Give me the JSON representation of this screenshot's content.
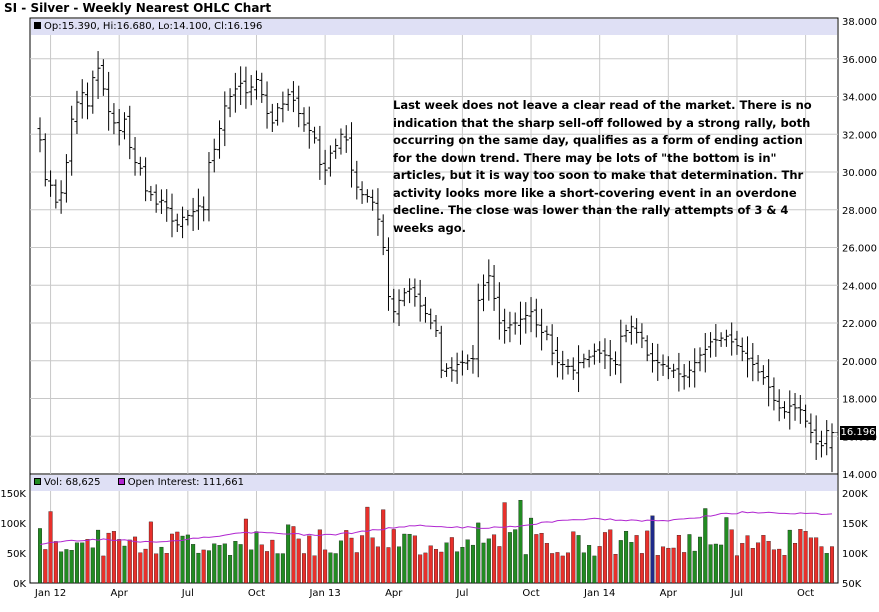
{
  "title": "SI - Silver - Weekly Nearest OHLC Chart",
  "ohlc_legend": "Op:15.390, Hi:16.680, Lo:14.100, Cl:16.196",
  "volume_legend": {
    "volume": "Vol: 68,625",
    "open_interest": "Open Interest: 111,661"
  },
  "annotation": "Last week does not leave a clear read of the market.  There is no indication that the sharp sell-off followed by a strong rally, both occurring on the same day, qualifies as a form of ending action for the down trend.   There may be lots of \"the bottom is in\" articles, but it is way too soon to make that determination.  Thr activity looks more like a short-covering event in an overdone decline.  The close was lower than the rally attempts of 3 & 4 weeks ago.",
  "last_price_label": "16.196",
  "colors": {
    "bar": "#000000",
    "vol_up": "#228b22",
    "vol_down": "#e8302b",
    "vol_other": "#1f2a8a",
    "open_interest": "#b026d0",
    "header": "#dfe0f5",
    "grid": "#c8c8c8"
  },
  "chart_data": [
    {
      "type": "ohlc",
      "title": "SI - Silver - Weekly Nearest OHLC Chart",
      "y_ticks": [
        14,
        16,
        18,
        20,
        22,
        24,
        26,
        28,
        30,
        32,
        34,
        36,
        38
      ],
      "y_tick_labels": [
        "14.000",
        "16.000",
        "18.000",
        "20.000",
        "22.000",
        "24.000",
        "26.000",
        "28.000",
        "30.000",
        "32.000",
        "34.000",
        "36.000",
        "38.000"
      ],
      "ylim": [
        14,
        38
      ],
      "x_tick_labels": [
        "Jan 12",
        "Apr",
        "Jul",
        "Oct",
        "Jan 13",
        "Apr",
        "Jul",
        "Oct",
        "Jan 14",
        "Apr",
        "Jul",
        "Oct"
      ],
      "x_tick_weeks": [
        2,
        15,
        28,
        41,
        54,
        67,
        80,
        93,
        106,
        119,
        132,
        145
      ],
      "grid": true,
      "last_bar": {
        "open": 15.39,
        "high": 16.68,
        "low": 14.1,
        "close": 16.196
      },
      "weekly_closes": [
        31.7,
        29.6,
        29.3,
        28.4,
        28.9,
        30.5,
        32.8,
        33.7,
        34.2,
        33.5,
        35.0,
        35.5,
        34.4,
        33.2,
        32.6,
        32.2,
        32.8,
        31.3,
        30.5,
        30.2,
        29.0,
        28.8,
        28.3,
        28.5,
        28.1,
        27.4,
        27.2,
        27.6,
        27.7,
        27.9,
        28.2,
        28.0,
        30.5,
        31.2,
        32.3,
        33.5,
        34.0,
        34.4,
        34.7,
        34.2,
        34.5,
        34.9,
        34.1,
        33.1,
        32.6,
        33.4,
        33.6,
        34.1,
        33.8,
        33.1,
        32.5,
        32.2,
        31.8,
        30.4,
        30.1,
        31.0,
        31.4,
        32.0,
        31.7,
        30.1,
        29.2,
        28.8,
        28.7,
        28.4,
        27.5,
        26.0,
        23.4,
        22.6,
        23.2,
        23.6,
        23.8,
        23.4,
        22.9,
        22.5,
        22.0,
        21.6,
        19.5,
        19.6,
        19.5,
        19.8,
        19.9,
        20.0,
        20.1,
        23.2,
        24.0,
        24.5,
        23.3,
        22.0,
        21.6,
        21.9,
        22.0,
        22.2,
        22.4,
        22.6,
        21.9,
        21.5,
        21.4,
        20.4,
        19.9,
        19.8,
        19.7,
        19.5,
        19.9,
        20.1,
        20.2,
        20.5,
        20.4,
        20.3,
        20.1,
        19.8,
        21.3,
        21.6,
        21.8,
        21.5,
        21.2,
        20.3,
        20.0,
        19.9,
        19.8,
        19.6,
        19.5,
        19.3,
        19.2,
        19.5,
        19.9,
        20.3,
        20.6,
        21.0,
        21.1,
        21.2,
        21.3,
        21.0,
        20.8,
        20.5,
        20.1,
        19.8,
        19.4,
        19.1,
        18.6,
        17.9,
        17.5,
        17.3,
        17.6,
        17.5,
        17.4,
        16.8,
        16.2,
        15.6,
        15.5,
        16.3,
        16.196
      ],
      "volume_ylim": [
        0,
        150000
      ],
      "volume_tick_labels": [
        "0K",
        "50K",
        "100K",
        "150K"
      ],
      "open_interest_ylim": [
        50000,
        200000
      ],
      "open_interest_tick_labels": [
        "50K",
        "100K",
        "150K",
        "200K"
      ]
    }
  ]
}
